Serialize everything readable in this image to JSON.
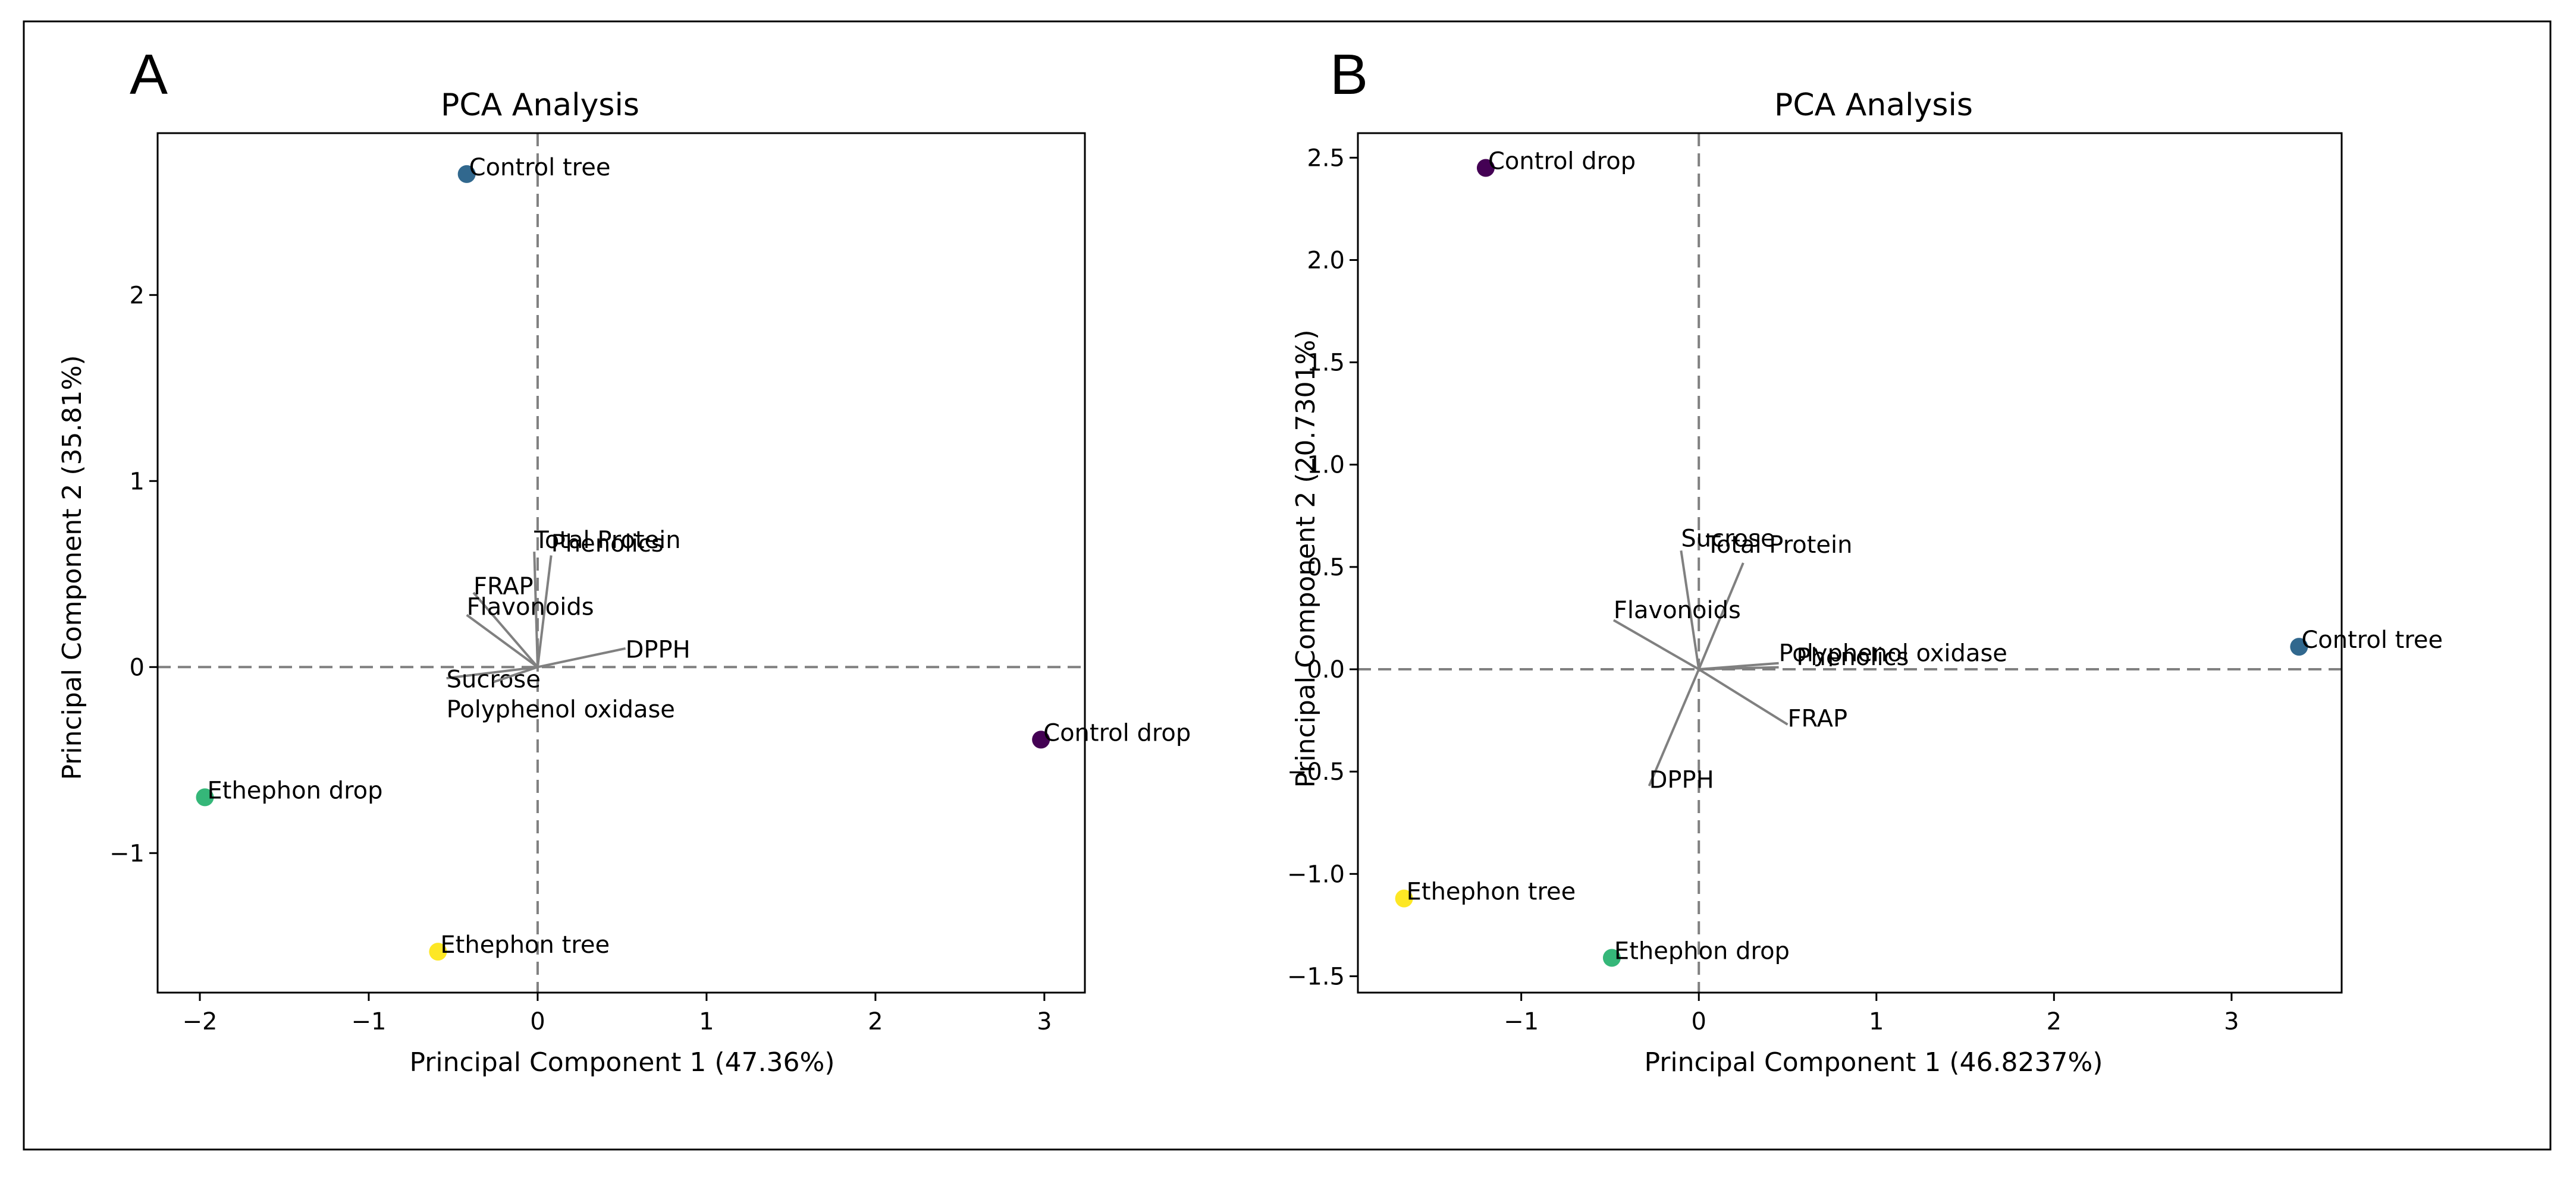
{
  "colors": {
    "control_drop": "#440154",
    "control_tree": "#31688e",
    "ethephon_drop": "#35b779",
    "ethephon_tree": "#fde725",
    "loading_arrow": "#808080",
    "axis_line": "#000000",
    "reference_line": "#808080",
    "frame": "#000000"
  },
  "chart_data": [
    {
      "panel": "A",
      "type": "scatter",
      "title": "PCA Analysis",
      "xlabel": "Principal Component 1 (47.36%)",
      "ylabel": "Principal Component 2 (35.81%)",
      "xlim": [
        -2.25,
        3.24
      ],
      "ylim": [
        -1.75,
        2.87
      ],
      "xticks": [
        -2,
        -1,
        0,
        1,
        2,
        3
      ],
      "xtick_labels": [
        "−2",
        "−1",
        "0",
        "1",
        "2",
        "3"
      ],
      "yticks": [
        -1,
        0,
        1,
        2
      ],
      "ytick_labels": [
        "−1",
        "0",
        "1",
        "2"
      ],
      "reference_lines": {
        "x": 0,
        "y": 0,
        "style": "dashed"
      },
      "points": [
        {
          "label": "Control tree",
          "x": -0.42,
          "y": 2.65,
          "color_key": "control_tree"
        },
        {
          "label": "Control drop",
          "x": 2.98,
          "y": -0.39,
          "color_key": "control_drop"
        },
        {
          "label": "Ethephon drop",
          "x": -1.97,
          "y": -0.7,
          "color_key": "ethephon_drop"
        },
        {
          "label": "Ethephon tree",
          "x": -0.59,
          "y": -1.53,
          "color_key": "ethephon_tree"
        }
      ],
      "loadings": [
        {
          "label": "Total Protein",
          "x": -0.02,
          "y": 0.62,
          "label_x": -0.02,
          "label_y": 0.64
        },
        {
          "label": "Phenolics",
          "x": 0.08,
          "y": 0.6,
          "label_x": 0.08,
          "label_y": 0.62
        },
        {
          "label": "FRAP",
          "x": -0.38,
          "y": 0.4,
          "label_x": -0.38,
          "label_y": 0.39
        },
        {
          "label": "Flavonoids",
          "x": -0.42,
          "y": 0.28,
          "label_x": -0.42,
          "label_y": 0.28
        },
        {
          "label": "DPPH",
          "x": 0.52,
          "y": 0.1,
          "label_x": 0.52,
          "label_y": 0.05
        },
        {
          "label": "Sucrose",
          "x": -0.54,
          "y": -0.06,
          "label_x": -0.54,
          "label_y": -0.11
        },
        {
          "label": "Polyphenol oxidase",
          "x": -0.26,
          "y": -0.08,
          "label_x": -0.54,
          "label_y": -0.27
        }
      ]
    },
    {
      "panel": "B",
      "type": "scatter",
      "title": "PCA Analysis",
      "xlabel": "Principal Component 1 (46.8237%)",
      "ylabel": "Principal Component 2 (20.7301%)",
      "xlim": [
        -1.92,
        3.62
      ],
      "ylim": [
        -1.58,
        2.62
      ],
      "xticks": [
        -1,
        0,
        1,
        2,
        3
      ],
      "xtick_labels": [
        "−1",
        "0",
        "1",
        "2",
        "3"
      ],
      "yticks": [
        -1.5,
        -1.0,
        -0.5,
        0.0,
        0.5,
        1.0,
        1.5,
        2.0,
        2.5
      ],
      "ytick_labels": [
        "−1.5",
        "−1.0",
        "−0.5",
        "0.0",
        "0.5",
        "1.0",
        "1.5",
        "2.0",
        "2.5"
      ],
      "reference_lines": {
        "x": 0,
        "y": 0,
        "style": "dashed"
      },
      "points": [
        {
          "label": "Control drop",
          "x": -1.2,
          "y": 2.45,
          "color_key": "control_drop"
        },
        {
          "label": "Control tree",
          "x": 3.38,
          "y": 0.11,
          "color_key": "control_tree"
        },
        {
          "label": "Ethephon tree",
          "x": -1.66,
          "y": -1.12,
          "color_key": "ethephon_tree"
        },
        {
          "label": "Ethephon drop",
          "x": -0.49,
          "y": -1.41,
          "color_key": "ethephon_drop"
        }
      ],
      "loadings": [
        {
          "label": "Sucrose",
          "x": -0.1,
          "y": 0.58,
          "label_x": -0.1,
          "label_y": 0.6
        },
        {
          "label": "Total Protein",
          "x": 0.25,
          "y": 0.52,
          "label_x": 0.04,
          "label_y": 0.57
        },
        {
          "label": "Flavonoids",
          "x": -0.48,
          "y": 0.24,
          "label_x": -0.48,
          "label_y": 0.25
        },
        {
          "label": "Phenolics",
          "x": 0.45,
          "y": 0.01,
          "label_x": 0.55,
          "label_y": 0.02
        },
        {
          "label": "Polyphenol oxidase",
          "x": 0.45,
          "y": 0.03,
          "label_x": 0.45,
          "label_y": 0.04
        },
        {
          "label": "FRAP",
          "x": 0.5,
          "y": -0.27,
          "label_x": 0.5,
          "label_y": -0.28
        },
        {
          "label": "DPPH",
          "x": -0.28,
          "y": -0.57,
          "label_x": -0.28,
          "label_y": -0.58
        }
      ]
    }
  ]
}
